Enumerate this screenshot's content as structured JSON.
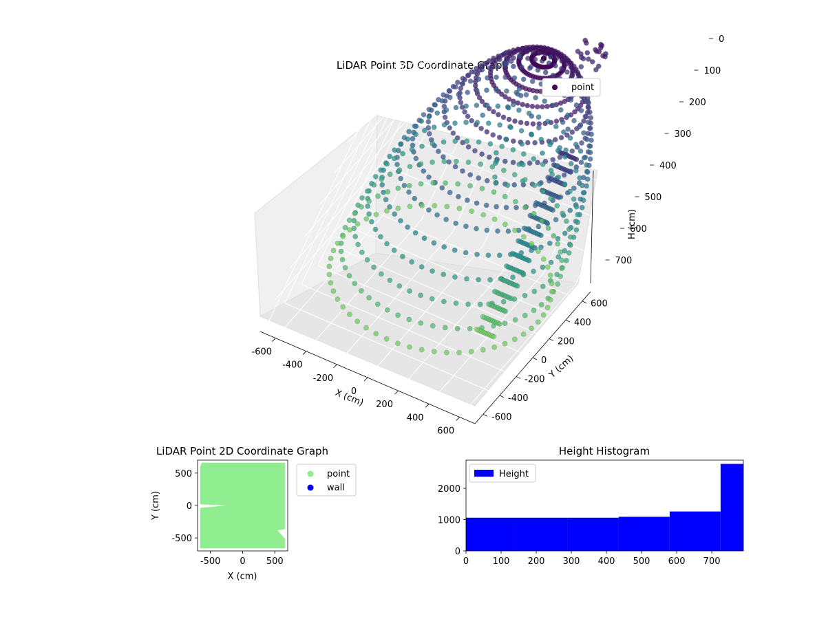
{
  "chart_data": [
    {
      "type": "scatter",
      "projection": "3d",
      "title": "LiDAR Point 3D Coordinate Graph",
      "xlabel": "X (cm)",
      "ylabel": "Y (cm)",
      "zlabel": "H (cm)",
      "xlim": [
        -700,
        700
      ],
      "ylim": [
        -700,
        700
      ],
      "zlim": [
        0,
        800
      ],
      "z_inverted": true,
      "xticks": [
        -600,
        -400,
        -200,
        0,
        200,
        400,
        600
      ],
      "yticks": [
        -600,
        -400,
        -200,
        0,
        200,
        400,
        600
      ],
      "zticks": [
        0,
        100,
        200,
        300,
        400,
        500,
        600,
        700
      ],
      "grid": true,
      "colormap": "viridis",
      "legend": {
        "placement": "upper-right",
        "entries": [
          {
            "label": "point",
            "color": "#440154"
          }
        ]
      }
    },
    {
      "type": "scatter",
      "title": "LiDAR Point 2D Coordinate Graph",
      "xlabel": "X (cm)",
      "ylabel": "Y (cm)",
      "xlim": [
        -700,
        700
      ],
      "ylim": [
        -700,
        700
      ],
      "xticks": [
        -500,
        0,
        500
      ],
      "yticks": [
        -500,
        0,
        500
      ],
      "series": [
        {
          "name": "point",
          "color": "#90ee90"
        },
        {
          "name": "wall",
          "color": "#0000ff"
        }
      ],
      "legend": {
        "placement": "outside-right"
      }
    },
    {
      "type": "bar",
      "subtype": "histogram",
      "title": "Height Histogram",
      "xlim": [
        0,
        790
      ],
      "ylim": [
        0,
        2900
      ],
      "xticks": [
        0,
        100,
        200,
        300,
        400,
        500,
        600,
        700
      ],
      "yticks": [
        0,
        1000,
        2000
      ],
      "bins": [
        {
          "x0": 0,
          "x1": 145,
          "count": 1060
        },
        {
          "x0": 145,
          "x1": 290,
          "count": 1060
        },
        {
          "x0": 290,
          "x1": 435,
          "count": 1060
        },
        {
          "x0": 435,
          "x1": 580,
          "count": 1090
        },
        {
          "x0": 580,
          "x1": 725,
          "count": 1260
        },
        {
          "x0": 725,
          "x1": 790,
          "count": 2780
        }
      ],
      "series": [
        {
          "name": "Height",
          "color": "#0000ff"
        }
      ],
      "legend": {
        "placement": "upper-left"
      }
    }
  ]
}
